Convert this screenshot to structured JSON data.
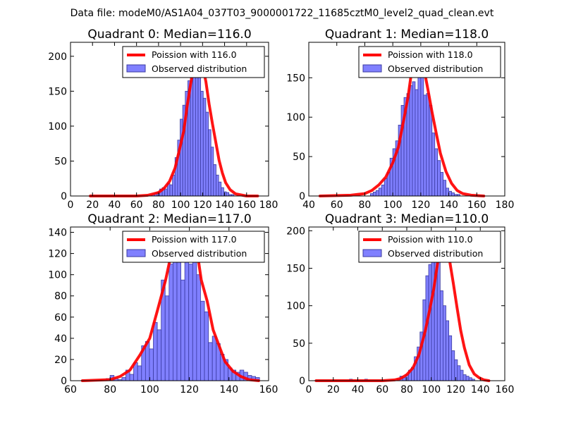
{
  "figure": {
    "suptitle": "Data file: modeM0/AS1A04_037T03_9000001722_11685cztM0_level2_quad_clean.evt"
  },
  "colors": {
    "bar_fill": "#8080ff",
    "bar_edge": "#3a3aa0",
    "curve": "#ff0000",
    "legend_edge": "#000000"
  },
  "chart_data": [
    {
      "type": "bar",
      "title": "Quadrant 0: Median=116.0",
      "xlim": [
        0,
        180
      ],
      "ylim": [
        0,
        220
      ],
      "xticks": [
        0,
        20,
        40,
        60,
        80,
        100,
        120,
        140,
        160,
        180
      ],
      "yticks": [
        0,
        50,
        100,
        150,
        200
      ],
      "legend": {
        "position": "top-right",
        "curve_label": "Poission with 116.0",
        "bar_label": "Observed distribution"
      },
      "hist": {
        "bin_start": 74,
        "bin_width": 2.33,
        "counts": [
          2,
          4,
          6,
          10,
          12,
          10,
          18,
          16,
          30,
          55,
          80,
          110,
          130,
          150,
          165,
          180,
          170,
          205,
          190,
          150,
          140,
          120,
          95,
          70,
          45,
          30,
          20,
          12,
          6,
          5,
          2,
          2
        ]
      },
      "poisson": {
        "x": [
          18,
          60,
          70,
          80,
          85,
          90,
          95,
          100,
          103,
          106,
          109,
          112,
          115,
          116,
          117,
          120,
          123,
          126,
          129,
          132,
          135,
          138,
          141,
          145,
          150,
          160,
          170
        ],
        "y": [
          0,
          0,
          1,
          5,
          11,
          21,
          40,
          73,
          94,
          129,
          159,
          187,
          208,
          210,
          208,
          187,
          164,
          131,
          103,
          77,
          51,
          33,
          19,
          9,
          3,
          0,
          0
        ]
      }
    },
    {
      "type": "bar",
      "title": "Quadrant 1: Median=118.0",
      "xlim": [
        40,
        180
      ],
      "ylim": [
        0,
        195
      ],
      "xticks": [
        40,
        60,
        80,
        100,
        120,
        140,
        160,
        180
      ],
      "yticks": [
        0,
        50,
        100,
        150
      ],
      "legend": {
        "position": "top-right",
        "curve_label": "Poission with 118.0",
        "bar_label": "Observed distribution"
      },
      "hist": {
        "bin_start": 84,
        "bin_width": 2.0,
        "counts": [
          3,
          5,
          7,
          10,
          14,
          22,
          30,
          48,
          60,
          70,
          90,
          115,
          125,
          130,
          140,
          145,
          135,
          160,
          160,
          128,
          130,
          115,
          80,
          60,
          45,
          30,
          20,
          10,
          6,
          4,
          2,
          2
        ]
      },
      "poisson": {
        "x": [
          48,
          70,
          80,
          85,
          90,
          95,
          100,
          104,
          108,
          111,
          114,
          116,
          118,
          120,
          122,
          125,
          128,
          131,
          134,
          138,
          142,
          146,
          150,
          156,
          165
        ],
        "y": [
          0,
          1,
          3,
          7,
          14,
          24,
          42,
          62,
          98,
          127,
          165,
          181,
          188,
          181,
          164,
          136,
          107,
          80,
          54,
          31,
          16,
          7,
          3,
          1,
          0
        ]
      }
    },
    {
      "type": "bar",
      "title": "Quadrant 2: Median=117.0",
      "xlim": [
        60,
        160
      ],
      "ylim": [
        0,
        145
      ],
      "xticks": [
        60,
        80,
        100,
        120,
        140,
        160
      ],
      "yticks": [
        0,
        20,
        40,
        60,
        80,
        100,
        120,
        140
      ],
      "legend": {
        "position": "top-right",
        "curve_label": "Poission with 117.0",
        "bar_label": "Observed distribution"
      },
      "hist": {
        "bin_start": 78,
        "bin_width": 1.985,
        "counts": [
          2,
          5,
          2,
          1,
          3,
          10,
          6,
          17,
          14,
          33,
          37,
          30,
          55,
          48,
          95,
          80,
          110,
          130,
          130,
          95,
          120,
          110,
          130,
          100,
          75,
          65,
          36,
          42,
          35,
          25,
          20,
          12,
          10,
          8,
          10,
          8,
          5,
          4,
          3
        ]
      },
      "poisson": {
        "x": [
          66,
          80,
          85,
          90,
          95,
          100,
          104,
          108,
          111,
          114,
          116,
          117,
          118,
          120,
          122,
          124,
          126,
          129,
          132,
          135,
          138,
          142,
          146,
          150,
          155
        ],
        "y": [
          0,
          1,
          4,
          10,
          24,
          40,
          67,
          95,
          121,
          134,
          139,
          139,
          139,
          134,
          127,
          121,
          95,
          75,
          48,
          33,
          18,
          9,
          4,
          1,
          0
        ]
      }
    },
    {
      "type": "bar",
      "title": "Quadrant 3: Median=110.0",
      "xlim": [
        0,
        160
      ],
      "ylim": [
        0,
        205
      ],
      "xticks": [
        0,
        20,
        40,
        60,
        80,
        100,
        120,
        140,
        160
      ],
      "yticks": [
        0,
        50,
        100,
        150,
        200
      ],
      "legend": {
        "position": "top-right",
        "curve_label": "Poission with 110.0",
        "bar_label": "Observed distribution"
      },
      "hist": {
        "bin_start": 72,
        "bin_width": 2.35,
        "counts": [
          2,
          6,
          4,
          8,
          14,
          18,
          32,
          45,
          65,
          108,
          140,
          155,
          180,
          190,
          160,
          120,
          100,
          80,
          60,
          40,
          28,
          20,
          14,
          8,
          6,
          4,
          2
        ],
        "extra": [
          [
            33.2,
            2
          ],
          [
            45.6,
            2
          ]
        ]
      },
      "poisson": {
        "x": [
          6,
          60,
          70,
          75,
          80,
          85,
          90,
          95,
          99,
          102,
          105,
          108,
          110,
          112,
          115,
          118,
          121,
          124,
          127,
          131,
          135,
          139,
          143,
          147
        ],
        "y": [
          0,
          0,
          1,
          3,
          8,
          17,
          35,
          66,
          97,
          122,
          155,
          186,
          190,
          186,
          160,
          130,
          98,
          67,
          44,
          21,
          9,
          4,
          1,
          0
        ]
      }
    }
  ]
}
